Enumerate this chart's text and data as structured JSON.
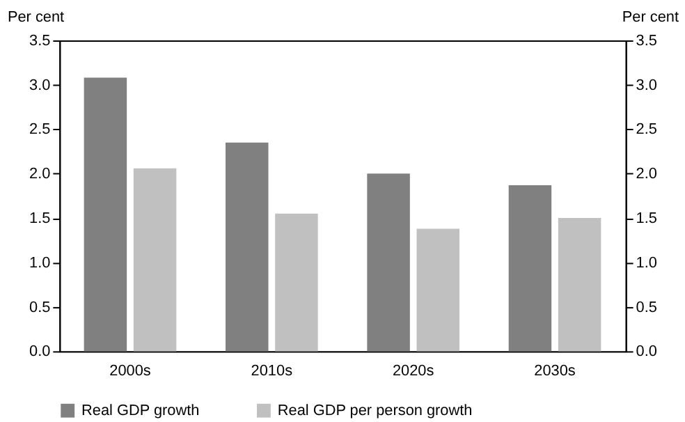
{
  "chart_data": {
    "type": "bar",
    "ylabel": "Per cent",
    "y2label": "Per cent",
    "categories": [
      "2000s",
      "2010s",
      "2020s",
      "2030s"
    ],
    "series": [
      {
        "name": "Real GDP growth",
        "color": "#808080",
        "values": [
          3.08,
          2.35,
          2.0,
          1.87
        ]
      },
      {
        "name": "Real GDP per person growth",
        "color": "#c0c0c0",
        "values": [
          2.06,
          1.55,
          1.38,
          1.5
        ]
      }
    ],
    "ylim": [
      0,
      3.5
    ],
    "yticks": [
      {
        "value": 0,
        "label": "0.0"
      },
      0.5,
      {
        "value": 1,
        "label": "1.0"
      },
      1.5,
      {
        "value": 2,
        "label": "2.0"
      },
      2.5,
      {
        "value": 3,
        "label": "3.0"
      },
      3.5
    ],
    "y2lim": [
      0,
      3.5
    ],
    "y2ticks": [
      {
        "value": 0,
        "label": "0.0"
      },
      0.5,
      {
        "value": 1,
        "label": "1.0"
      },
      1.5,
      {
        "value": 2,
        "label": "2.0"
      },
      2.5,
      {
        "value": 3,
        "label": "3.0"
      },
      3.5
    ],
    "grid": false,
    "legend": "bottom"
  }
}
